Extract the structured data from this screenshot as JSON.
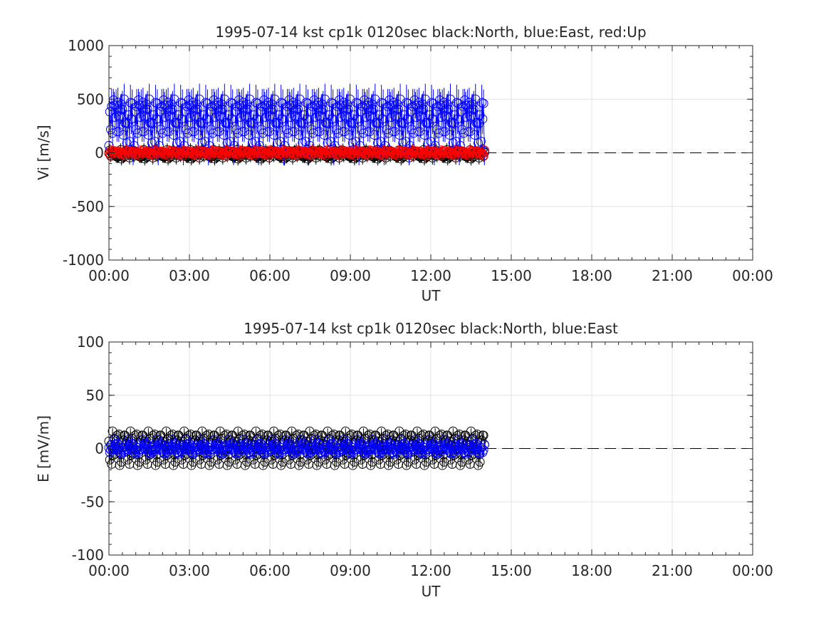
{
  "chart_data": [
    {
      "type": "scatter",
      "title": "1995-07-14 kst cp1k 0120sec black:North, blue:East, red:Up",
      "xlabel": "UT",
      "ylabel": "Vi [m/s]",
      "xlim": [
        0,
        24
      ],
      "ylim": [
        -1000,
        1000
      ],
      "x_tick_values": [
        0,
        3,
        6,
        9,
        12,
        15,
        18,
        21,
        24
      ],
      "x_tick_labels": [
        "00:00",
        "03:00",
        "06:00",
        "09:00",
        "12:00",
        "15:00",
        "18:00",
        "21:00",
        "00:00"
      ],
      "y_tick_values": [
        -1000,
        -500,
        0,
        500,
        1000
      ],
      "y_tick_labels": [
        "-1000",
        "-500",
        "0",
        "500",
        "1000"
      ],
      "grid": true,
      "zero_line": true,
      "data_range_hours": [
        0,
        14
      ],
      "series": [
        {
          "key": "north",
          "color": "#000000",
          "spread": 150,
          "err": 120,
          "vals": [
            0.2,
            -0.05,
            0.15,
            0.3,
            -0.12,
            -0.4,
            0.1,
            0.35,
            -0.2,
            0.05,
            0.25,
            -0.3,
            0.12,
            0.4,
            -0.08,
            -0.25,
            0.18,
            0.05,
            -0.15,
            0.3,
            -0.35,
            0.1,
            0.22,
            -0.05,
            0.15,
            -0.2
          ]
        },
        {
          "key": "east",
          "color": "#0000ff",
          "spread": 220,
          "err": 170,
          "vals": [
            1.4,
            0.6,
            -0.9,
            1.9,
            -1.3,
            2.1,
            -2.3,
            0.8,
            1.6,
            -0.4,
            2.5,
            -1.7,
            0.3,
            1.2,
            -2.0,
            1.8,
            -0.6,
            2.4,
            -1.1,
            0.5,
            1.5,
            -2.6,
            1.0,
            -0.3,
            1.7,
            -1.5,
            2.2,
            -0.8
          ]
        },
        {
          "key": "up",
          "color": "#ff0000",
          "spread": 32,
          "err": 20,
          "vals": [
            0.8,
            -0.5,
            0.3,
            1.0,
            -0.9,
            0.2,
            -0.3,
            0.7,
            -1.0,
            0.5,
            -0.2,
            0.9,
            -0.7,
            0.1,
            0.6,
            -0.4
          ]
        }
      ]
    },
    {
      "type": "scatter",
      "title": "1995-07-14 kst cp1k 0120sec black:North, blue:East",
      "xlabel": "UT",
      "ylabel": "E [mV/m]",
      "xlim": [
        0,
        24
      ],
      "ylim": [
        -100,
        100
      ],
      "x_tick_values": [
        0,
        3,
        6,
        9,
        12,
        15,
        18,
        21,
        24
      ],
      "x_tick_labels": [
        "00:00",
        "03:00",
        "06:00",
        "09:00",
        "12:00",
        "15:00",
        "18:00",
        "21:00",
        "00:00"
      ],
      "y_tick_values": [
        -100,
        -50,
        0,
        50,
        100
      ],
      "y_tick_labels": [
        "-100",
        "-50",
        "0",
        "50",
        "100"
      ],
      "grid": true,
      "zero_line": true,
      "data_range_hours": [
        0,
        14
      ],
      "series": [
        {
          "key": "north",
          "color": "#000000",
          "spread": 8,
          "err": 5,
          "vals": [
            1.2,
            -1.6,
            0.6,
            2.1,
            -2.2,
            0.3,
            1.5,
            -0.9,
            2.6,
            -1.3,
            0.9,
            -2.5,
            1.8,
            -0.4,
            2.2,
            -1.8,
            0.5,
            1.1,
            -2.0,
            1.6
          ]
        },
        {
          "key": "east",
          "color": "#0000ff",
          "spread": 4.5,
          "err": 3,
          "vals": [
            0.5,
            -0.8,
            1.2,
            -0.3,
            1.8,
            -1.5,
            0.9,
            -1.9,
            0.2,
            1.5,
            -1.1,
            0.7,
            -0.6,
            1.9,
            -1.7,
            0.4
          ]
        }
      ]
    }
  ]
}
